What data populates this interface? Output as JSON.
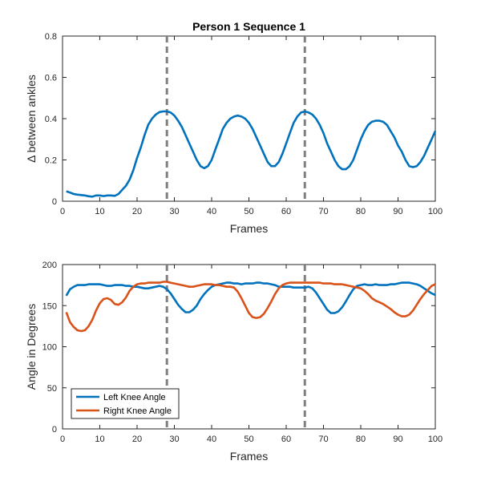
{
  "chart_data": [
    {
      "type": "line",
      "title": "Person 1 Sequence 1",
      "xlabel": "Frames",
      "ylabel": "Δ between ankles",
      "xlim": [
        0,
        100
      ],
      "ylim": [
        0,
        0.8
      ],
      "xticks": [
        0,
        10,
        20,
        30,
        40,
        50,
        60,
        70,
        80,
        90,
        100
      ],
      "yticks": [
        0,
        0.2,
        0.4,
        0.6,
        0.8
      ],
      "ytick_labels": [
        "0",
        "0.2",
        "0.4",
        "0.6",
        "0.8"
      ],
      "grid": false,
      "vlines": [
        28,
        65
      ],
      "series": [
        {
          "color": "#0072BD",
          "x": [
            1,
            2,
            3,
            4,
            5,
            6,
            7,
            8,
            9,
            10,
            11,
            12,
            13,
            14,
            15,
            16,
            17,
            18,
            19,
            20,
            21,
            22,
            23,
            24,
            25,
            26,
            27,
            28,
            29,
            30,
            31,
            32,
            33,
            34,
            35,
            36,
            37,
            38,
            39,
            40,
            41,
            42,
            43,
            44,
            45,
            46,
            47,
            48,
            49,
            50,
            51,
            52,
            53,
            54,
            55,
            56,
            57,
            58,
            59,
            60,
            61,
            62,
            63,
            64,
            65,
            66,
            67,
            68,
            69,
            70,
            71,
            72,
            73,
            74,
            75,
            76,
            77,
            78,
            79,
            80,
            81,
            82,
            83,
            84,
            85,
            86,
            87,
            88,
            89,
            90,
            91,
            92,
            93,
            94,
            95,
            96,
            97,
            98,
            99,
            100
          ],
          "y": [
            0.048,
            0.042,
            0.035,
            0.032,
            0.03,
            0.028,
            0.024,
            0.022,
            0.028,
            0.028,
            0.025,
            0.028,
            0.028,
            0.026,
            0.035,
            0.055,
            0.075,
            0.105,
            0.15,
            0.21,
            0.26,
            0.32,
            0.37,
            0.4,
            0.42,
            0.432,
            0.435,
            0.435,
            0.43,
            0.415,
            0.39,
            0.36,
            0.32,
            0.28,
            0.24,
            0.2,
            0.17,
            0.16,
            0.17,
            0.2,
            0.25,
            0.3,
            0.35,
            0.38,
            0.4,
            0.41,
            0.415,
            0.41,
            0.4,
            0.38,
            0.35,
            0.31,
            0.27,
            0.23,
            0.19,
            0.17,
            0.17,
            0.19,
            0.23,
            0.28,
            0.33,
            0.38,
            0.41,
            0.43,
            0.435,
            0.43,
            0.42,
            0.4,
            0.37,
            0.33,
            0.28,
            0.24,
            0.2,
            0.17,
            0.155,
            0.155,
            0.17,
            0.2,
            0.25,
            0.3,
            0.34,
            0.37,
            0.385,
            0.39,
            0.39,
            0.385,
            0.37,
            0.34,
            0.31,
            0.27,
            0.24,
            0.2,
            0.17,
            0.165,
            0.17,
            0.19,
            0.22,
            0.26,
            0.3,
            0.34
          ]
        }
      ]
    },
    {
      "type": "line",
      "xlabel": "Frames",
      "ylabel": "Angle in Degrees",
      "xlim": [
        0,
        100
      ],
      "ylim": [
        0,
        200
      ],
      "xticks": [
        0,
        10,
        20,
        30,
        40,
        50,
        60,
        70,
        80,
        90,
        100
      ],
      "yticks": [
        0,
        50,
        100,
        150,
        200
      ],
      "ytick_labels": [
        "0",
        "50",
        "100",
        "150",
        "200"
      ],
      "grid": false,
      "vlines": [
        28,
        65
      ],
      "legend_position": "bottom-left",
      "series": [
        {
          "name": "Left Knee Angle",
          "color": "#0072BD",
          "x": [
            1,
            2,
            3,
            4,
            5,
            6,
            7,
            8,
            9,
            10,
            11,
            12,
            13,
            14,
            15,
            16,
            17,
            18,
            19,
            20,
            21,
            22,
            23,
            24,
            25,
            26,
            27,
            28,
            29,
            30,
            31,
            32,
            33,
            34,
            35,
            36,
            37,
            38,
            39,
            40,
            41,
            42,
            43,
            44,
            45,
            46,
            47,
            48,
            49,
            50,
            51,
            52,
            53,
            54,
            55,
            56,
            57,
            58,
            59,
            60,
            61,
            62,
            63,
            64,
            65,
            66,
            67,
            68,
            69,
            70,
            71,
            72,
            73,
            74,
            75,
            76,
            77,
            78,
            79,
            80,
            81,
            82,
            83,
            84,
            85,
            86,
            87,
            88,
            89,
            90,
            91,
            92,
            93,
            94,
            95,
            96,
            97,
            98,
            99,
            100
          ],
          "y": [
            162,
            170,
            173,
            175,
            175,
            175,
            176,
            176,
            176,
            176,
            175,
            174,
            174,
            175,
            175,
            175,
            174,
            174,
            173,
            173,
            172,
            171,
            171,
            172,
            173,
            174,
            173,
            170,
            165,
            158,
            151,
            146,
            142,
            142,
            145,
            150,
            158,
            164,
            169,
            173,
            175,
            176,
            177,
            178,
            178,
            177,
            177,
            176,
            177,
            177,
            177,
            178,
            178,
            177,
            177,
            176,
            175,
            173,
            173,
            173,
            173,
            172,
            172,
            172,
            172,
            173,
            171,
            166,
            159,
            152,
            145,
            141,
            141,
            143,
            148,
            155,
            163,
            170,
            174,
            175,
            176,
            175,
            175,
            176,
            175,
            175,
            175,
            176,
            176,
            177,
            178,
            178,
            178,
            177,
            176,
            174,
            171,
            168,
            165,
            163
          ]
        },
        {
          "name": "Right Knee Angle",
          "color": "#D95319",
          "x": [
            1,
            2,
            3,
            4,
            5,
            6,
            7,
            8,
            9,
            10,
            11,
            12,
            13,
            14,
            15,
            16,
            17,
            18,
            19,
            20,
            21,
            22,
            23,
            24,
            25,
            26,
            27,
            28,
            29,
            30,
            31,
            32,
            33,
            34,
            35,
            36,
            37,
            38,
            39,
            40,
            41,
            42,
            43,
            44,
            45,
            46,
            47,
            48,
            49,
            50,
            51,
            52,
            53,
            54,
            55,
            56,
            57,
            58,
            59,
            60,
            61,
            62,
            63,
            64,
            65,
            66,
            67,
            68,
            69,
            70,
            71,
            72,
            73,
            74,
            75,
            76,
            77,
            78,
            79,
            80,
            81,
            82,
            83,
            84,
            85,
            86,
            87,
            88,
            89,
            90,
            91,
            92,
            93,
            94,
            95,
            96,
            97,
            98,
            99,
            100
          ],
          "y": [
            142,
            130,
            124,
            120,
            119,
            120,
            125,
            133,
            144,
            153,
            158,
            159,
            157,
            152,
            151,
            154,
            160,
            168,
            173,
            176,
            177,
            177,
            178,
            178,
            178,
            178,
            179,
            179,
            178,
            177,
            176,
            175,
            174,
            173,
            173,
            174,
            175,
            176,
            176,
            176,
            175,
            175,
            174,
            173,
            173,
            172,
            167,
            159,
            150,
            141,
            136,
            135,
            136,
            140,
            147,
            155,
            164,
            171,
            175,
            177,
            178,
            178,
            178,
            178,
            178,
            178,
            178,
            178,
            178,
            177,
            177,
            177,
            176,
            176,
            176,
            175,
            174,
            173,
            172,
            171,
            168,
            164,
            159,
            156,
            154,
            152,
            149,
            146,
            142,
            139,
            137,
            137,
            139,
            144,
            151,
            158,
            164,
            169,
            174,
            176
          ]
        }
      ]
    }
  ]
}
